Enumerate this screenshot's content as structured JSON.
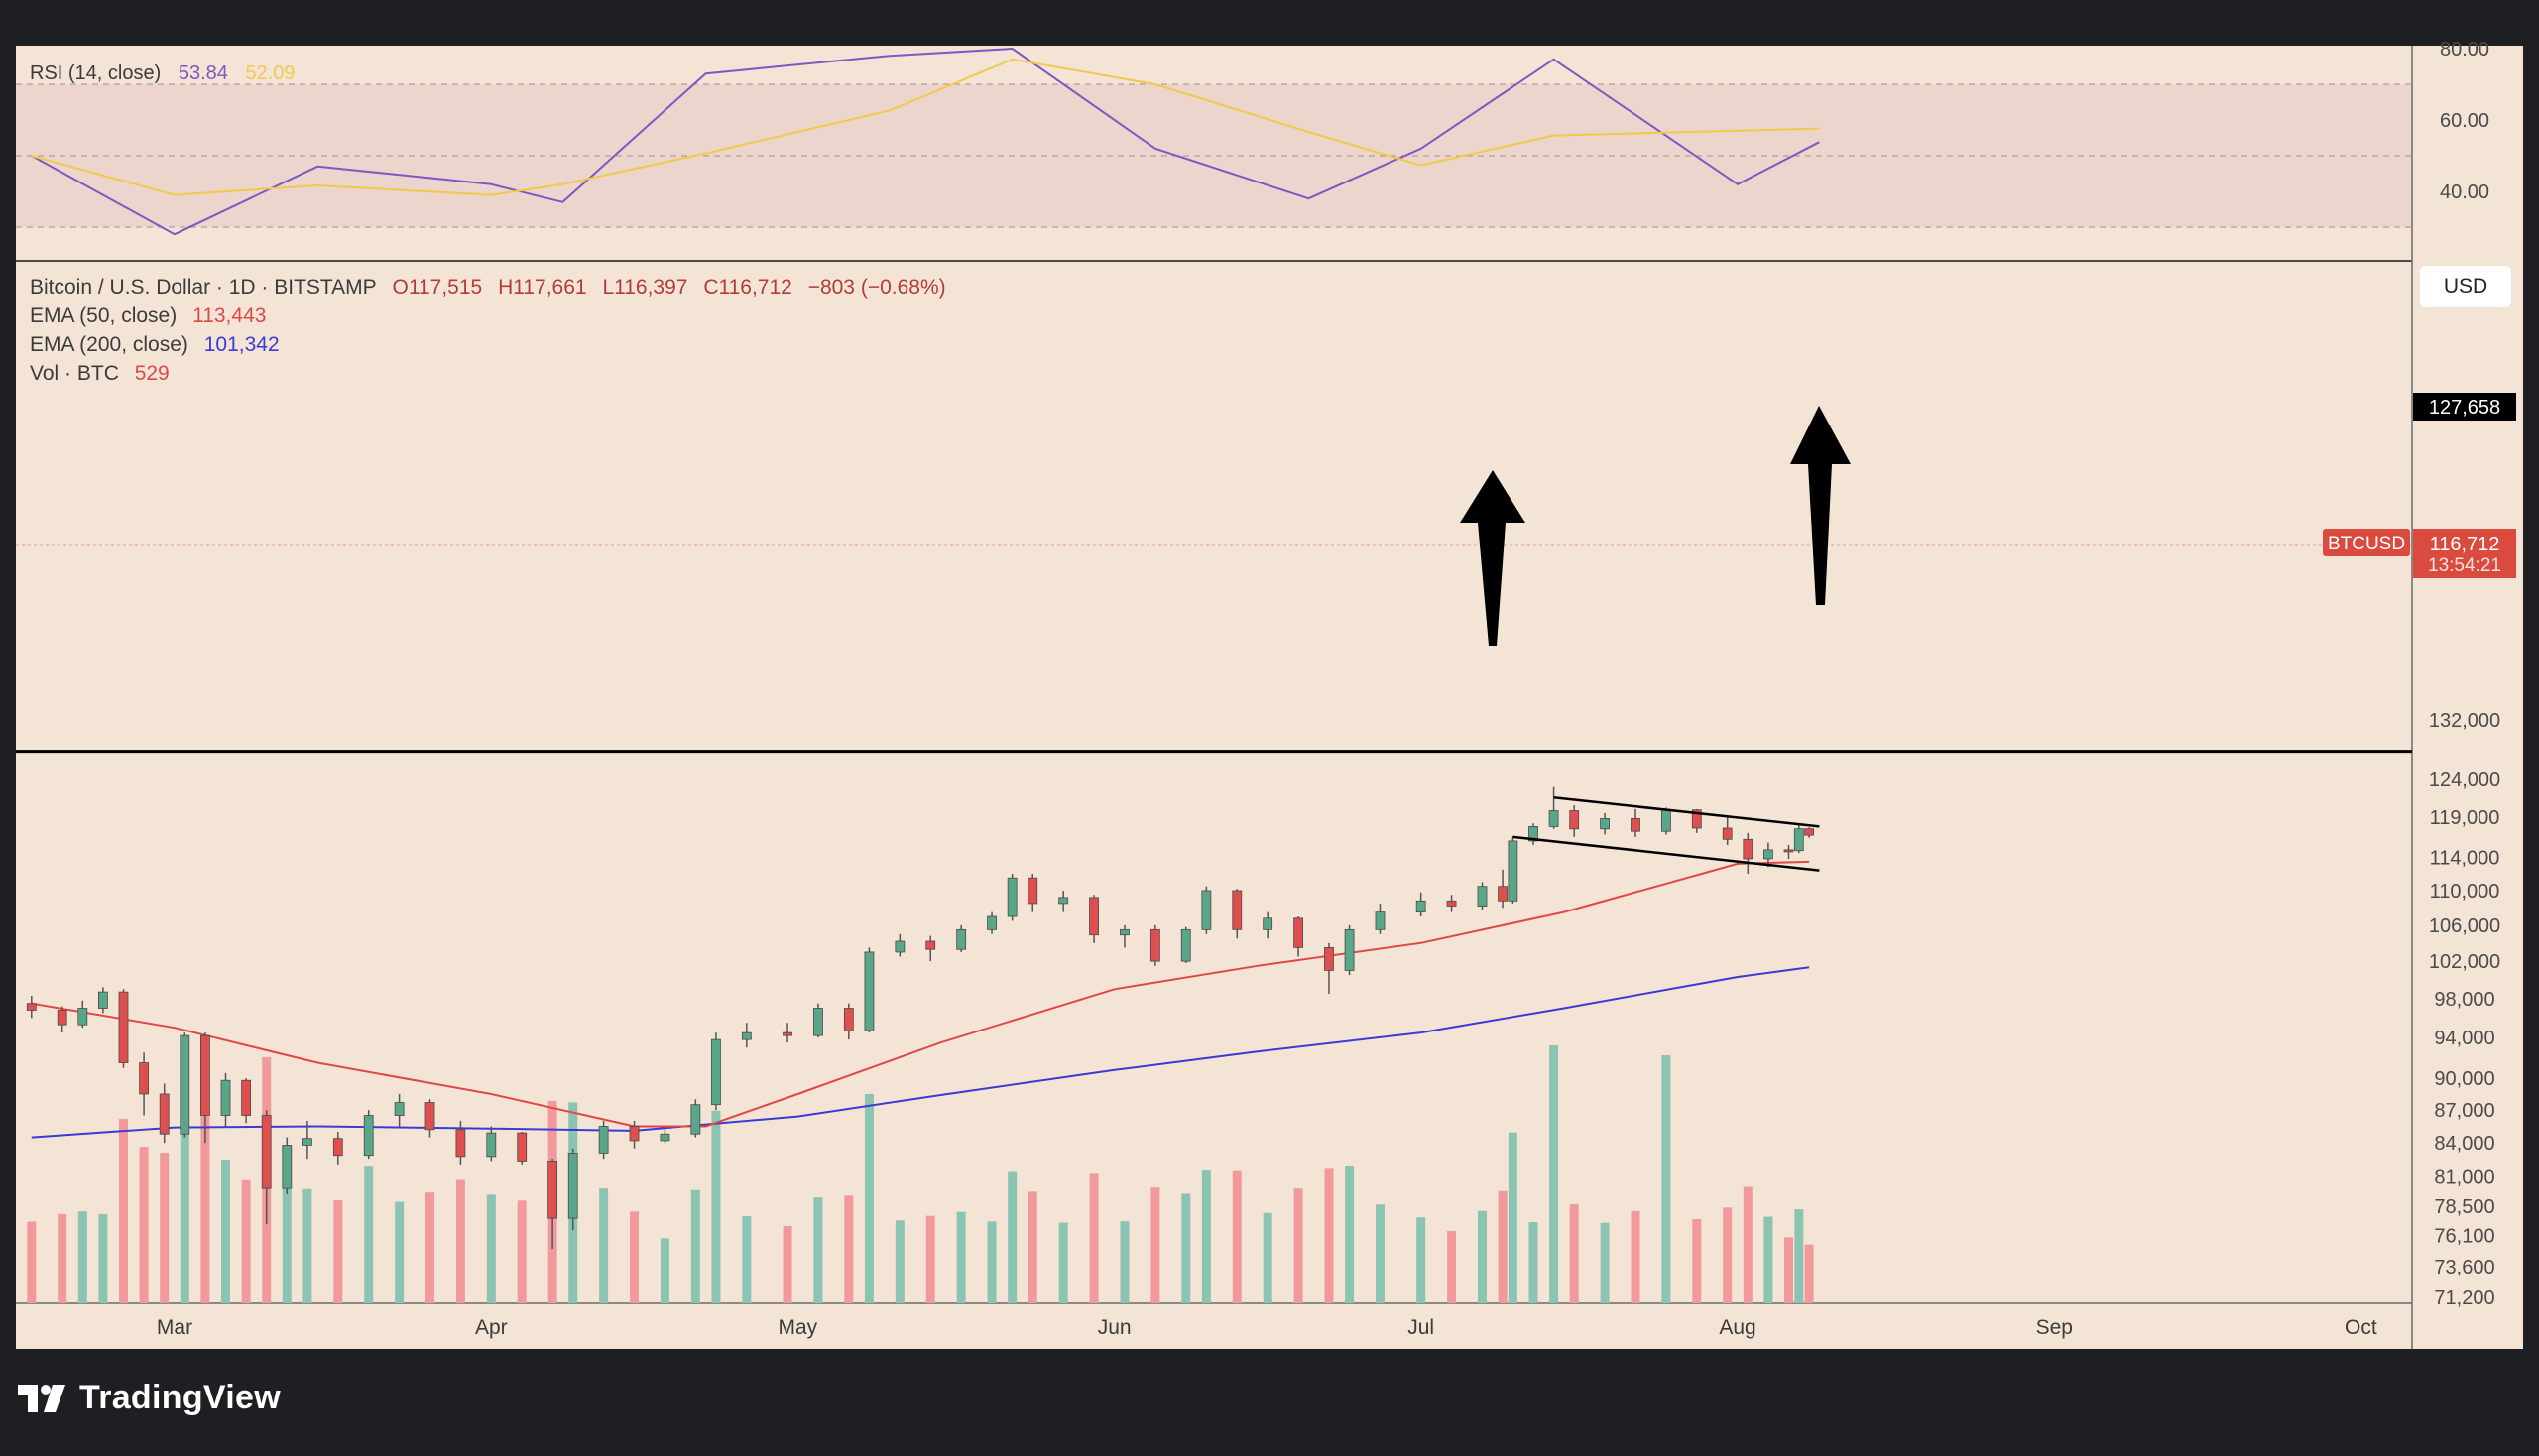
{
  "rsi": {
    "title": "RSI (14, close)",
    "value": "53.84",
    "ma_value": "52.09",
    "line_color": "#7e57c2",
    "ma_color": "#f2c94c",
    "axis_ticks": [
      "80.00",
      "60.00",
      "40.00"
    ]
  },
  "legend": {
    "symbol": "Bitcoin / U.S. Dollar · 1D · BITSTAMP",
    "open": "O117,515",
    "high": "H117,661",
    "low": "L116,397",
    "close": "C116,712",
    "change": "−803 (−0.68%)",
    "ema50_label": "EMA (50, close)",
    "ema50_value": "113,443",
    "ema200_label": "EMA (200, close)",
    "ema200_value": "101,342",
    "vol_label": "Vol · BTC",
    "vol_value": "529"
  },
  "currency_button": "USD",
  "price_axis": {
    "ticks": [
      "132,000",
      "124,000",
      "119,000",
      "114,000",
      "110,000",
      "106,000",
      "102,000",
      "98,000",
      "94,000",
      "90,000",
      "87,000",
      "84,000",
      "81,000",
      "78,500",
      "76,100",
      "73,600",
      "71,200"
    ],
    "hline_label": "127,658",
    "symbol_tag": "BTCUSD",
    "current_price": "116,712",
    "countdown": "13:54:21"
  },
  "time_axis": [
    "Mar",
    "Apr",
    "May",
    "Jun",
    "Jul",
    "Aug",
    "Sep",
    "Oct"
  ],
  "brand": "TradingView",
  "colors": {
    "up": "#5aa68a",
    "down": "#e04f4f",
    "vol_up": "#8cc4b4",
    "vol_down": "#f1999b",
    "ema50": "#e04848",
    "ema200": "#3a3ad6",
    "panel_bg": "#f4e4d6",
    "rsi_band": "#ecd5cc"
  },
  "chart_data": {
    "type": "candlestick",
    "title": "Bitcoin / U.S. Dollar · 1D · BITSTAMP",
    "ylim": [
      71200,
      132000
    ],
    "y_scale": "log",
    "x_range": [
      "2025-02-15",
      "2025-10-05"
    ],
    "series": [
      {
        "name": "EMA (50, close)",
        "points": [
          [
            "2025-02-15",
            97500
          ],
          [
            "2025-03-01",
            95000
          ],
          [
            "2025-03-15",
            91500
          ],
          [
            "2025-04-01",
            88500
          ],
          [
            "2025-04-15",
            85500
          ],
          [
            "2025-04-22",
            85500
          ],
          [
            "2025-05-01",
            88500
          ],
          [
            "2025-05-15",
            93500
          ],
          [
            "2025-06-01",
            99000
          ],
          [
            "2025-06-15",
            101500
          ],
          [
            "2025-07-01",
            104000
          ],
          [
            "2025-07-15",
            107500
          ],
          [
            "2025-08-01",
            113200
          ],
          [
            "2025-08-08",
            113443
          ]
        ]
      },
      {
        "name": "EMA (200, close)",
        "points": [
          [
            "2025-02-15",
            84500
          ],
          [
            "2025-03-01",
            85400
          ],
          [
            "2025-03-15",
            85500
          ],
          [
            "2025-04-01",
            85300
          ],
          [
            "2025-04-15",
            85100
          ],
          [
            "2025-05-01",
            86400
          ],
          [
            "2025-05-15",
            88400
          ],
          [
            "2025-06-01",
            90800
          ],
          [
            "2025-06-15",
            92600
          ],
          [
            "2025-07-01",
            94500
          ],
          [
            "2025-07-15",
            97000
          ],
          [
            "2025-08-01",
            100300
          ],
          [
            "2025-08-08",
            101342
          ]
        ]
      },
      {
        "name": "Horizontal level",
        "value": 127658
      },
      {
        "name": "Channel upper",
        "points": [
          [
            "2025-07-14",
            121500
          ],
          [
            "2025-08-09",
            117800
          ]
        ]
      },
      {
        "name": "Channel lower",
        "points": [
          [
            "2025-07-10",
            116500
          ],
          [
            "2025-08-09",
            112400
          ]
        ]
      },
      {
        "name": "RSI (14, close)",
        "points": [
          [
            "2025-02-15",
            50
          ],
          [
            "2025-03-01",
            28
          ],
          [
            "2025-03-15",
            47
          ],
          [
            "2025-04-01",
            42
          ],
          [
            "2025-04-08",
            37
          ],
          [
            "2025-04-22",
            73
          ],
          [
            "2025-05-10",
            78
          ],
          [
            "2025-05-22",
            80
          ],
          [
            "2025-06-05",
            52
          ],
          [
            "2025-06-20",
            38
          ],
          [
            "2025-07-01",
            52
          ],
          [
            "2025-07-14",
            77
          ],
          [
            "2025-08-01",
            42
          ],
          [
            "2025-08-09",
            53.84
          ]
        ]
      }
    ],
    "candles": [
      [
        "2025-02-15",
        97500,
        98300,
        96000,
        96800
      ],
      [
        "2025-02-18",
        96800,
        97200,
        94500,
        95300
      ],
      [
        "2025-02-20",
        95300,
        97800,
        95000,
        97000
      ],
      [
        "2025-02-22",
        97000,
        99200,
        96500,
        98700
      ],
      [
        "2025-02-24",
        98700,
        99000,
        91000,
        91500
      ],
      [
        "2025-02-26",
        91500,
        92500,
        86500,
        88500
      ],
      [
        "2025-02-28",
        88500,
        89500,
        84000,
        84800
      ],
      [
        "2025-03-02",
        84800,
        94500,
        84500,
        94200
      ],
      [
        "2025-03-04",
        94200,
        94500,
        84000,
        86500
      ],
      [
        "2025-03-06",
        86500,
        90500,
        85500,
        89800
      ],
      [
        "2025-03-08",
        89800,
        90000,
        85800,
        86500
      ],
      [
        "2025-03-10",
        86500,
        87000,
        77000,
        80000
      ],
      [
        "2025-03-12",
        80000,
        84500,
        79500,
        83800
      ],
      [
        "2025-03-14",
        83800,
        86000,
        82500,
        84400
      ],
      [
        "2025-03-17",
        84400,
        85000,
        82000,
        82800
      ],
      [
        "2025-03-20",
        82800,
        87000,
        82500,
        86500
      ],
      [
        "2025-03-23",
        86500,
        88500,
        85500,
        87700
      ],
      [
        "2025-03-26",
        87700,
        88000,
        84500,
        85200
      ],
      [
        "2025-03-29",
        85200,
        86000,
        82000,
        82700
      ],
      [
        "2025-04-01",
        82700,
        85500,
        82300,
        84900
      ],
      [
        "2025-04-04",
        84900,
        85000,
        82000,
        82300
      ],
      [
        "2025-04-07",
        82300,
        82500,
        75000,
        77500
      ],
      [
        "2025-04-09",
        77500,
        83500,
        76500,
        83000
      ],
      [
        "2025-04-12",
        83000,
        86000,
        82500,
        85500
      ],
      [
        "2025-04-15",
        85500,
        86000,
        83500,
        84200
      ],
      [
        "2025-04-18",
        84200,
        85200,
        84000,
        84800
      ],
      [
        "2025-04-21",
        84800,
        88000,
        84500,
        87500
      ],
      [
        "2025-04-23",
        87500,
        94500,
        87000,
        93800
      ],
      [
        "2025-04-26",
        93800,
        95500,
        93000,
        94500
      ],
      [
        "2025-04-30",
        94500,
        95500,
        93500,
        94200
      ],
      [
        "2025-05-03",
        94200,
        97500,
        94000,
        97000
      ],
      [
        "2025-05-06",
        97000,
        97500,
        93800,
        94700
      ],
      [
        "2025-05-08",
        94700,
        103500,
        94500,
        103000
      ],
      [
        "2025-05-11",
        103000,
        105000,
        102500,
        104200
      ],
      [
        "2025-05-14",
        104200,
        104800,
        102000,
        103300
      ],
      [
        "2025-05-17",
        103300,
        106000,
        103000,
        105500
      ],
      [
        "2025-05-20",
        105500,
        107500,
        105000,
        107000
      ],
      [
        "2025-05-22",
        107000,
        112000,
        106500,
        111500
      ],
      [
        "2025-05-24",
        111500,
        112000,
        107500,
        108500
      ],
      [
        "2025-05-27",
        108500,
        110000,
        107500,
        109200
      ],
      [
        "2025-05-30",
        109200,
        109500,
        104000,
        104900
      ],
      [
        "2025-06-02",
        104900,
        106000,
        103500,
        105500
      ],
      [
        "2025-06-05",
        105500,
        106000,
        101500,
        102000
      ],
      [
        "2025-06-08",
        102000,
        105800,
        101800,
        105500
      ],
      [
        "2025-06-10",
        105500,
        110500,
        105000,
        110000
      ],
      [
        "2025-06-13",
        110000,
        110200,
        104500,
        105500
      ],
      [
        "2025-06-16",
        105500,
        107500,
        104500,
        106800
      ],
      [
        "2025-06-19",
        106800,
        107000,
        102500,
        103500
      ],
      [
        "2025-06-22",
        103500,
        104000,
        98500,
        101000
      ],
      [
        "2025-06-24",
        101000,
        106000,
        100500,
        105500
      ],
      [
        "2025-06-27",
        105500,
        108500,
        105000,
        107500
      ],
      [
        "2025-07-01",
        107500,
        109800,
        107000,
        108800
      ],
      [
        "2025-07-04",
        108800,
        109500,
        107500,
        108200
      ],
      [
        "2025-07-07",
        108200,
        111000,
        107800,
        110500
      ],
      [
        "2025-07-09",
        110500,
        112500,
        108000,
        108800
      ],
      [
        "2025-07-10",
        108800,
        116500,
        108500,
        116000
      ],
      [
        "2025-07-12",
        116000,
        118200,
        115500,
        117800
      ],
      [
        "2025-07-14",
        117800,
        123000,
        117500,
        119800
      ],
      [
        "2025-07-16",
        119800,
        120500,
        116500,
        117500
      ],
      [
        "2025-07-19",
        117500,
        119500,
        116800,
        118800
      ],
      [
        "2025-07-22",
        118800,
        120000,
        116500,
        117200
      ],
      [
        "2025-07-25",
        117200,
        120200,
        116800,
        119900
      ],
      [
        "2025-07-28",
        119900,
        120000,
        117000,
        117600
      ],
      [
        "2025-07-31",
        117600,
        119200,
        115500,
        116200
      ],
      [
        "2025-08-02",
        116200,
        117000,
        112000,
        113800
      ],
      [
        "2025-08-04",
        113800,
        115800,
        112800,
        114900
      ],
      [
        "2025-08-06",
        114900,
        115500,
        113800,
        114800
      ],
      [
        "2025-08-07",
        114800,
        118000,
        114500,
        117515
      ],
      [
        "2025-08-08",
        117515,
        117661,
        116397,
        116712
      ]
    ],
    "volume_note": "BTC daily volume bars, spikes near 2025-07-14 and 2025-07-25"
  }
}
